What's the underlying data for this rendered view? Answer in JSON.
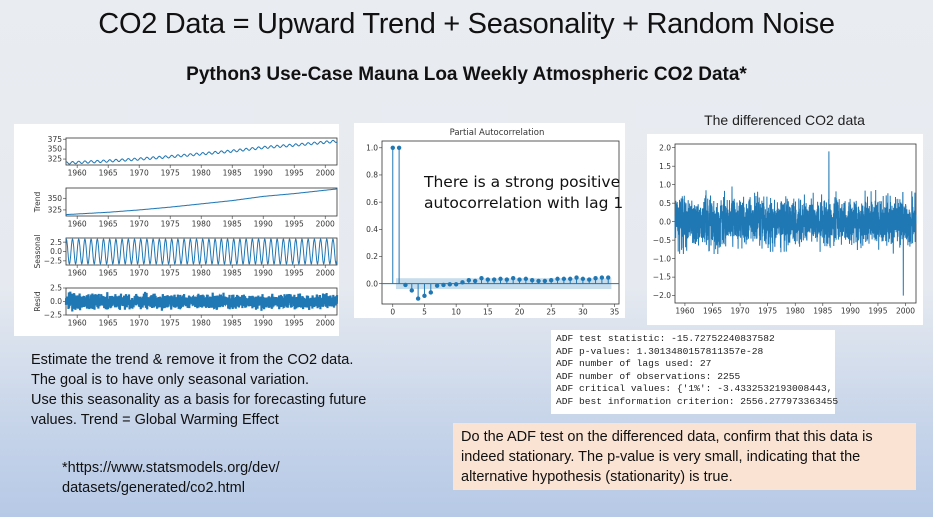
{
  "slide": {
    "title": "CO2 Data = Upward Trend + Seasonality + Random Noise",
    "subtitle": "Python3 Use-Case Mauna Loa Weekly Atmospheric CO2 Data*",
    "left_text": [
      "Estimate the trend & remove it from the CO2 data.",
      "The goal is to have only seasonal variation.",
      "Use this seasonality as a basis for forecasting future values. Trend = Global Warming Effect"
    ],
    "footnote": [
      "*https://www.statsmodels.org/dev/",
      "datasets/generated/co2.html"
    ],
    "pacf_annotation": [
      "There is a strong positive",
      "autocorrelation with lag 1"
    ],
    "diff_title": "The differenced CO2 data",
    "adf_output": [
      "ADF test statistic: -15.72752240837582",
      "ADF p-values: 1.3013480157811357e-28",
      "ADF number of lags used: 27",
      "ADF number of observations: 2255",
      "ADF critical values: {'1%': -3.4332532193008443,",
      "ADF best information criterion: 2556.277973363455"
    ],
    "conclusion": "Do the ADF test on the differenced data, confirm that this data is indeed stationary. The p-value is very small, indicating that the alternative hypothesis (stationarity) is true."
  },
  "chart_data": [
    {
      "type": "line",
      "panel": "observed",
      "ylabel": "",
      "x_ticks": [
        "1960",
        "1965",
        "1970",
        "1975",
        "1980",
        "1985",
        "1990",
        "1995",
        "2000"
      ],
      "y_ticks": [
        "325",
        "350",
        "375"
      ],
      "xlim": [
        1958.2,
        2001.9
      ],
      "ylim": [
        310,
        378
      ],
      "trend_points": {
        "x": [
          1958.2,
          1965,
          1970,
          1975,
          1980,
          1985,
          1990,
          1995,
          2001.9
        ],
        "y": [
          315,
          320,
          325,
          331,
          338,
          345,
          354,
          360,
          370
        ]
      },
      "seasonal_amplitude": 3,
      "color": "#1f77b4"
    },
    {
      "type": "line",
      "panel": "trend",
      "ylabel": "Trend",
      "x_ticks": [
        "1960",
        "1965",
        "1970",
        "1975",
        "1980",
        "1985",
        "1990",
        "1995",
        "2000"
      ],
      "y_ticks": [
        "325",
        "350"
      ],
      "xlim": [
        1958.2,
        2001.9
      ],
      "ylim": [
        312,
        372
      ],
      "x": [
        1958.2,
        1965,
        1970,
        1975,
        1980,
        1985,
        1990,
        1995,
        2001.9
      ],
      "y": [
        315,
        320,
        325,
        331,
        338,
        345,
        354,
        360,
        370
      ],
      "color": "#1f77b4"
    },
    {
      "type": "line",
      "panel": "seasonal",
      "ylabel": "Seasonal",
      "x_ticks": [
        "1960",
        "1965",
        "1970",
        "1975",
        "1980",
        "1985",
        "1990",
        "1995",
        "2000"
      ],
      "y_ticks": [
        "2.5",
        "0.0",
        "−2.5"
      ],
      "xlim": [
        1958.2,
        2001.9
      ],
      "ylim": [
        -3.6,
        3.6
      ],
      "amplitude": 3.3,
      "period_years": 1,
      "color": "#1f77b4"
    },
    {
      "type": "line",
      "panel": "resid",
      "ylabel": "Resid",
      "x_ticks": [
        "1960",
        "1965",
        "1970",
        "1975",
        "1980",
        "1985",
        "1990",
        "1995",
        "2000"
      ],
      "y_ticks": [
        "2.5",
        "0.0",
        "−2.5"
      ],
      "xlim": [
        1958.2,
        2001.9
      ],
      "ylim": [
        -2.5,
        2.5
      ],
      "color": "#1f77b4"
    },
    {
      "type": "stem",
      "title": "Partial Autocorrelation",
      "x_ticks": [
        "0",
        "5",
        "10",
        "15",
        "20",
        "25",
        "30",
        "35"
      ],
      "y_ticks": [
        "0.0",
        "0.2",
        "0.4",
        "0.6",
        "0.8",
        "1.0"
      ],
      "xlim": [
        -1.7,
        35.7
      ],
      "ylim": [
        -0.15,
        1.05
      ],
      "confidence_band": 0.04,
      "lags": [
        0,
        1,
        2,
        3,
        4,
        5,
        6,
        7,
        8,
        9,
        10,
        11,
        12,
        13,
        14,
        15,
        16,
        17,
        18,
        19,
        20,
        21,
        22,
        23,
        24,
        25,
        26,
        27,
        28,
        29,
        30,
        31,
        32,
        33,
        34
      ],
      "values": [
        1.0,
        1.0,
        -0.01,
        -0.05,
        -0.11,
        -0.09,
        -0.065,
        -0.015,
        -0.01,
        -0.005,
        -0.005,
        0.01,
        0.025,
        0.02,
        0.04,
        0.03,
        0.03,
        0.035,
        0.03,
        0.04,
        0.03,
        0.035,
        0.025,
        0.02,
        0.02,
        0.025,
        0.035,
        0.035,
        0.035,
        0.045,
        0.035,
        0.03,
        0.04,
        0.045,
        0.045
      ],
      "color": "#1f77b4"
    },
    {
      "type": "line",
      "title": "The differenced CO2 data",
      "x_ticks": [
        "1960",
        "1965",
        "1970",
        "1975",
        "1980",
        "1985",
        "1990",
        "1995",
        "2000"
      ],
      "y_ticks": [
        "2.0",
        "1.5",
        "1.0",
        "0.5",
        "0.0",
        "−0.5",
        "−1.0",
        "−1.5",
        "−2.0"
      ],
      "xlim": [
        1958.2,
        2001.9
      ],
      "ylim": [
        -2.2,
        2.1
      ],
      "extremes": {
        "max": 1.9,
        "min": -2.0
      },
      "color": "#1f77b4"
    }
  ]
}
